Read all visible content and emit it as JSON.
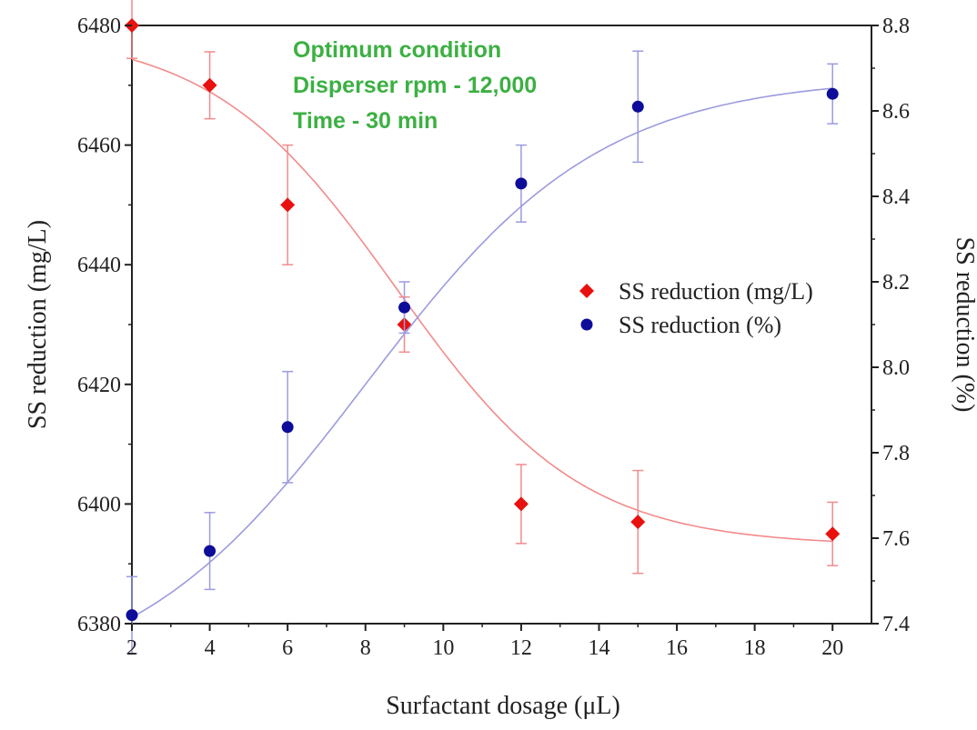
{
  "chart_data": {
    "type": "scatter",
    "xlabel": "Surfactant dosage (μL)",
    "ylabel_left": "SS reduction (mg/L)",
    "ylabel_right": "SS reduction (%)",
    "xlim": [
      2,
      21
    ],
    "ylim_left": [
      6380,
      6480
    ],
    "ylim_right": [
      7.4,
      8.8
    ],
    "x_ticks": [
      2,
      4,
      6,
      8,
      10,
      12,
      14,
      16,
      18,
      20
    ],
    "y_left_ticks": [
      6380,
      6400,
      6420,
      6440,
      6460,
      6480
    ],
    "y_right_ticks": [
      "7.4",
      "7.6",
      "7.8",
      "8.0",
      "8.2",
      "8.4",
      "8.6",
      "8.8"
    ],
    "annotations": [
      "Optimum condition",
      "Disperser rpm - 12,000",
      "Time - 30 min"
    ],
    "legend_position": "center-right",
    "series": [
      {
        "name": "SS reduction (mg/L)",
        "axis": "left",
        "marker": "diamond",
        "color": "#e8110f",
        "fit_color": "#f28b8b",
        "x": [
          2,
          4,
          6,
          9,
          12,
          15,
          20
        ],
        "y": [
          6480,
          6470,
          6450,
          6430,
          6400,
          6397,
          6395
        ],
        "err": [
          5.5,
          5.6,
          10,
          4.6,
          6.6,
          8.6,
          5.3
        ],
        "fit": {
          "top": 6479,
          "bottom": 6393,
          "x0": 8.8,
          "k": 0.42
        }
      },
      {
        "name": "SS reduction (%)",
        "axis": "right",
        "marker": "circle",
        "color": "#0d0d9a",
        "fit_color": "#9b9be0",
        "x": [
          2,
          4,
          6,
          9,
          12,
          15,
          20
        ],
        "y": [
          7.42,
          7.57,
          7.86,
          8.14,
          8.43,
          8.61,
          8.64
        ],
        "err": [
          0.09,
          0.09,
          0.13,
          0.06,
          0.09,
          0.13,
          0.07
        ],
        "fit": {
          "top": 8.68,
          "bottom": 7.24,
          "x0": 8.0,
          "k": 0.33
        }
      }
    ]
  }
}
